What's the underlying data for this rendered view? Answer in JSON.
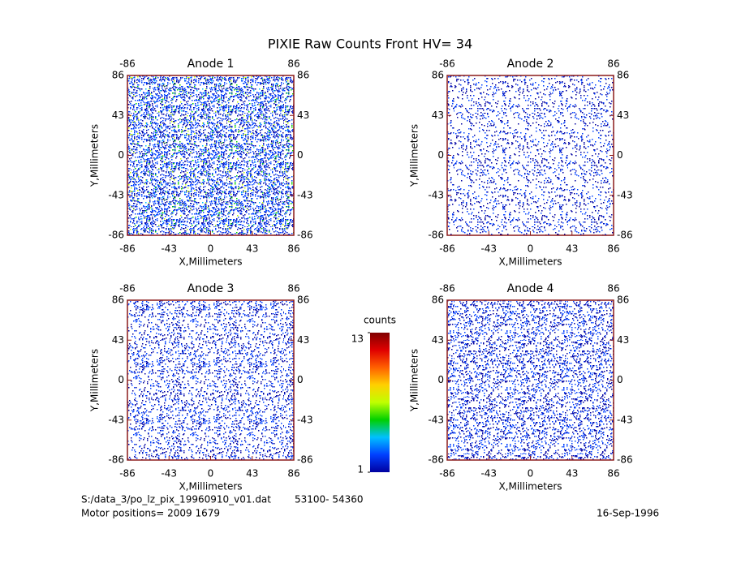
{
  "title": "PIXIE Raw Counts Front HV= 34",
  "chart_data": [
    {
      "type": "heatmap",
      "title": "Anode 1",
      "x_label": "X,Millimeters",
      "y_label": "Y,Millimeters",
      "xlim": [
        -86,
        86
      ],
      "ylim": [
        -86,
        86
      ],
      "xticks": [
        -86,
        -43,
        0,
        43,
        86
      ],
      "yticks": [
        -86,
        -43,
        0,
        43,
        86
      ],
      "x2ticks": [
        -86,
        86
      ],
      "y2ticks": [
        -86,
        -43,
        0,
        43,
        86
      ]
    },
    {
      "type": "heatmap",
      "title": "Anode 2",
      "x_label": "X,Millimeters",
      "y_label": "Y,Millimeters",
      "xlim": [
        -86,
        86
      ],
      "ylim": [
        -86,
        86
      ],
      "xticks": [
        -86,
        -43,
        0,
        43,
        86
      ],
      "yticks": [
        -86,
        -43,
        0,
        43,
        86
      ],
      "x2ticks": [
        -86,
        86
      ],
      "y2ticks": [
        -86,
        -43,
        0,
        43,
        86
      ]
    },
    {
      "type": "heatmap",
      "title": "Anode 3",
      "x_label": "X,Millimeters",
      "y_label": "Y,Millimeters",
      "xlim": [
        -86,
        86
      ],
      "ylim": [
        -86,
        86
      ],
      "xticks": [
        -86,
        -43,
        0,
        43,
        86
      ],
      "yticks": [
        -86,
        -43,
        0,
        43,
        86
      ],
      "x2ticks": [
        -86,
        86
      ],
      "y2ticks": [
        -86,
        -43,
        0,
        43,
        86
      ]
    },
    {
      "type": "heatmap",
      "title": "Anode 4",
      "x_label": "X,Millimeters",
      "y_label": "Y,Millimeters",
      "xlim": [
        -86,
        86
      ],
      "ylim": [
        -86,
        86
      ],
      "xticks": [
        -86,
        -43,
        0,
        43,
        86
      ],
      "yticks": [
        -86,
        -43,
        0,
        43,
        86
      ],
      "x2ticks": [
        -86,
        86
      ],
      "y2ticks": [
        -86,
        -43,
        0,
        43,
        86
      ]
    }
  ],
  "colorbar": {
    "label": "counts",
    "lim": [
      1,
      13
    ],
    "ticks": [
      1,
      13
    ],
    "colors": [
      "#0000a0",
      "#0040ff",
      "#00c0ff",
      "#00d000",
      "#c0ff00",
      "#ffd000",
      "#ff6000",
      "#e00000",
      "#800000"
    ]
  },
  "footer": {
    "file": "S:/data_3/po_lz_pix_19960910_v01.dat",
    "range": "53100- 54360",
    "motor": "Motor positions= 2009 1679",
    "date": "16-Sep-1996"
  }
}
